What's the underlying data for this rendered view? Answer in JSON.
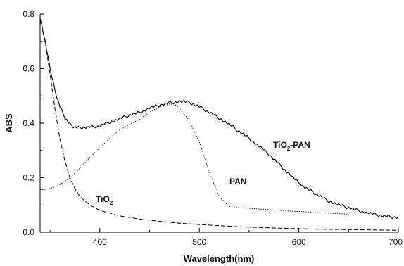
{
  "chart_data": {
    "type": "line",
    "title": "",
    "xlabel": "Wavelength(nm)",
    "ylabel": "ABS",
    "xlim": [
      340,
      700
    ],
    "ylim": [
      0,
      0.8
    ],
    "x_ticks": [
      400,
      500,
      600,
      700
    ],
    "x_tick_labels": [
      "400",
      "500",
      "600",
      "700"
    ],
    "y_ticks": [
      0.0,
      0.2,
      0.4,
      0.6,
      0.8
    ],
    "y_tick_labels": [
      "0.0",
      "0.2",
      "0.4",
      "0.6",
      "0.8"
    ],
    "grid": false,
    "legend": "none",
    "series": [
      {
        "label_main": "TiO",
        "label_sub": "2",
        "label_suffix": "-PAN",
        "style": "solid",
        "x": [
          340,
          345,
          350,
          355,
          360,
          365,
          370,
          375,
          380,
          390,
          400,
          410,
          420,
          430,
          440,
          450,
          460,
          470,
          480,
          490,
          500,
          510,
          520,
          530,
          540,
          550,
          560,
          570,
          580,
          590,
          600,
          610,
          620,
          630,
          640,
          650,
          660,
          670,
          680,
          690,
          700
        ],
        "y": [
          0.79,
          0.7,
          0.6,
          0.52,
          0.46,
          0.42,
          0.395,
          0.385,
          0.383,
          0.385,
          0.39,
          0.405,
          0.415,
          0.43,
          0.44,
          0.455,
          0.465,
          0.475,
          0.48,
          0.475,
          0.46,
          0.44,
          0.42,
          0.395,
          0.37,
          0.345,
          0.315,
          0.285,
          0.25,
          0.215,
          0.18,
          0.155,
          0.135,
          0.115,
          0.1,
          0.09,
          0.08,
          0.07,
          0.062,
          0.057,
          0.055
        ]
      },
      {
        "label_main": "PAN",
        "label_sub": "",
        "label_suffix": "",
        "style": "dotted",
        "x": [
          340,
          350,
          360,
          370,
          380,
          390,
          400,
          410,
          420,
          430,
          440,
          450,
          460,
          470,
          475,
          480,
          490,
          500,
          510,
          520,
          530,
          540,
          550,
          560,
          570,
          580,
          590,
          600,
          610,
          620,
          630,
          640,
          650
        ],
        "y": [
          0.155,
          0.16,
          0.175,
          0.2,
          0.235,
          0.275,
          0.31,
          0.345,
          0.375,
          0.395,
          0.415,
          0.44,
          0.46,
          0.47,
          0.47,
          0.455,
          0.41,
          0.33,
          0.22,
          0.13,
          0.095,
          0.09,
          0.088,
          0.085,
          0.083,
          0.08,
          0.078,
          0.076,
          0.074,
          0.072,
          0.07,
          0.068,
          0.066
        ]
      },
      {
        "label_main": "TiO",
        "label_sub": "2",
        "label_suffix": "",
        "style": "dashed",
        "x": [
          340,
          345,
          350,
          355,
          360,
          365,
          370,
          375,
          380,
          390,
          400,
          420,
          440,
          460,
          480,
          500,
          520,
          540,
          560,
          580,
          600,
          620,
          640,
          660,
          680,
          700
        ],
        "y": [
          0.78,
          0.7,
          0.58,
          0.45,
          0.34,
          0.26,
          0.2,
          0.16,
          0.13,
          0.1,
          0.08,
          0.06,
          0.048,
          0.04,
          0.033,
          0.028,
          0.024,
          0.02,
          0.017,
          0.015,
          0.013,
          0.011,
          0.01,
          0.009,
          0.008,
          0.007
        ]
      }
    ]
  }
}
